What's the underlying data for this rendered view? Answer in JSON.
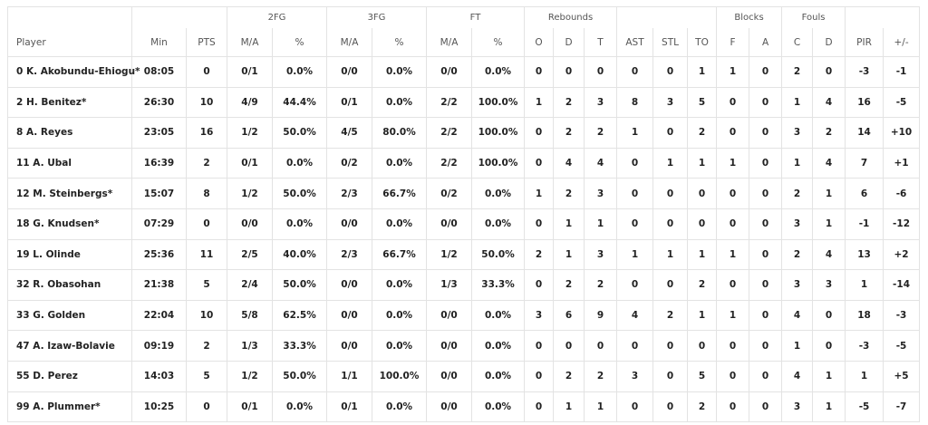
{
  "table": {
    "groups": [
      "2FG",
      "3FG",
      "FT",
      "Rebounds",
      "Blocks",
      "Fouls"
    ],
    "columns": [
      "Player",
      "Min",
      "PTS",
      "M/A",
      "%",
      "M/A",
      "%",
      "M/A",
      "%",
      "O",
      "D",
      "T",
      "AST",
      "STL",
      "TO",
      "F",
      "A",
      "C",
      "D",
      "PIR",
      "+/-"
    ],
    "rows": [
      [
        "0 K. Akobundu-Ehiogu*",
        "08:05",
        "0",
        "0/1",
        "0.0%",
        "0/0",
        "0.0%",
        "0/0",
        "0.0%",
        "0",
        "0",
        "0",
        "0",
        "0",
        "1",
        "1",
        "0",
        "2",
        "0",
        "-3",
        "-1"
      ],
      [
        "2 H. Benitez*",
        "26:30",
        "10",
        "4/9",
        "44.4%",
        "0/1",
        "0.0%",
        "2/2",
        "100.0%",
        "1",
        "2",
        "3",
        "8",
        "3",
        "5",
        "0",
        "0",
        "1",
        "4",
        "16",
        "-5"
      ],
      [
        "8 A. Reyes",
        "23:05",
        "16",
        "1/2",
        "50.0%",
        "4/5",
        "80.0%",
        "2/2",
        "100.0%",
        "0",
        "2",
        "2",
        "1",
        "0",
        "2",
        "0",
        "0",
        "3",
        "2",
        "14",
        "+10"
      ],
      [
        "11 A. Ubal",
        "16:39",
        "2",
        "0/1",
        "0.0%",
        "0/2",
        "0.0%",
        "2/2",
        "100.0%",
        "0",
        "4",
        "4",
        "0",
        "1",
        "1",
        "1",
        "0",
        "1",
        "4",
        "7",
        "+1"
      ],
      [
        "12 M. Steinbergs*",
        "15:07",
        "8",
        "1/2",
        "50.0%",
        "2/3",
        "66.7%",
        "0/2",
        "0.0%",
        "1",
        "2",
        "3",
        "0",
        "0",
        "0",
        "0",
        "0",
        "2",
        "1",
        "6",
        "-6"
      ],
      [
        "18 G. Knudsen*",
        "07:29",
        "0",
        "0/0",
        "0.0%",
        "0/0",
        "0.0%",
        "0/0",
        "0.0%",
        "0",
        "1",
        "1",
        "0",
        "0",
        "0",
        "0",
        "0",
        "3",
        "1",
        "-1",
        "-12"
      ],
      [
        "19 L. Olinde",
        "25:36",
        "11",
        "2/5",
        "40.0%",
        "2/3",
        "66.7%",
        "1/2",
        "50.0%",
        "2",
        "1",
        "3",
        "1",
        "1",
        "1",
        "1",
        "0",
        "2",
        "4",
        "13",
        "+2"
      ],
      [
        "32 R. Obasohan",
        "21:38",
        "5",
        "2/4",
        "50.0%",
        "0/0",
        "0.0%",
        "1/3",
        "33.3%",
        "0",
        "2",
        "2",
        "0",
        "0",
        "2",
        "0",
        "0",
        "3",
        "3",
        "1",
        "-14"
      ],
      [
        "33 G. Golden",
        "22:04",
        "10",
        "5/8",
        "62.5%",
        "0/0",
        "0.0%",
        "0/0",
        "0.0%",
        "3",
        "6",
        "9",
        "4",
        "2",
        "1",
        "1",
        "0",
        "4",
        "0",
        "18",
        "-3"
      ],
      [
        "47 A. Izaw-Bolavie",
        "09:19",
        "2",
        "1/3",
        "33.3%",
        "0/0",
        "0.0%",
        "0/0",
        "0.0%",
        "0",
        "0",
        "0",
        "0",
        "0",
        "0",
        "0",
        "0",
        "1",
        "0",
        "-3",
        "-5"
      ],
      [
        "55 D. Perez",
        "14:03",
        "5",
        "1/2",
        "50.0%",
        "1/1",
        "100.0%",
        "0/0",
        "0.0%",
        "0",
        "2",
        "2",
        "3",
        "0",
        "5",
        "0",
        "0",
        "4",
        "1",
        "1",
        "+5"
      ],
      [
        "99 A. Plummer*",
        "10:25",
        "0",
        "0/1",
        "0.0%",
        "0/1",
        "0.0%",
        "0/0",
        "0.0%",
        "0",
        "1",
        "1",
        "0",
        "0",
        "2",
        "0",
        "0",
        "3",
        "1",
        "-5",
        "-7"
      ]
    ]
  }
}
